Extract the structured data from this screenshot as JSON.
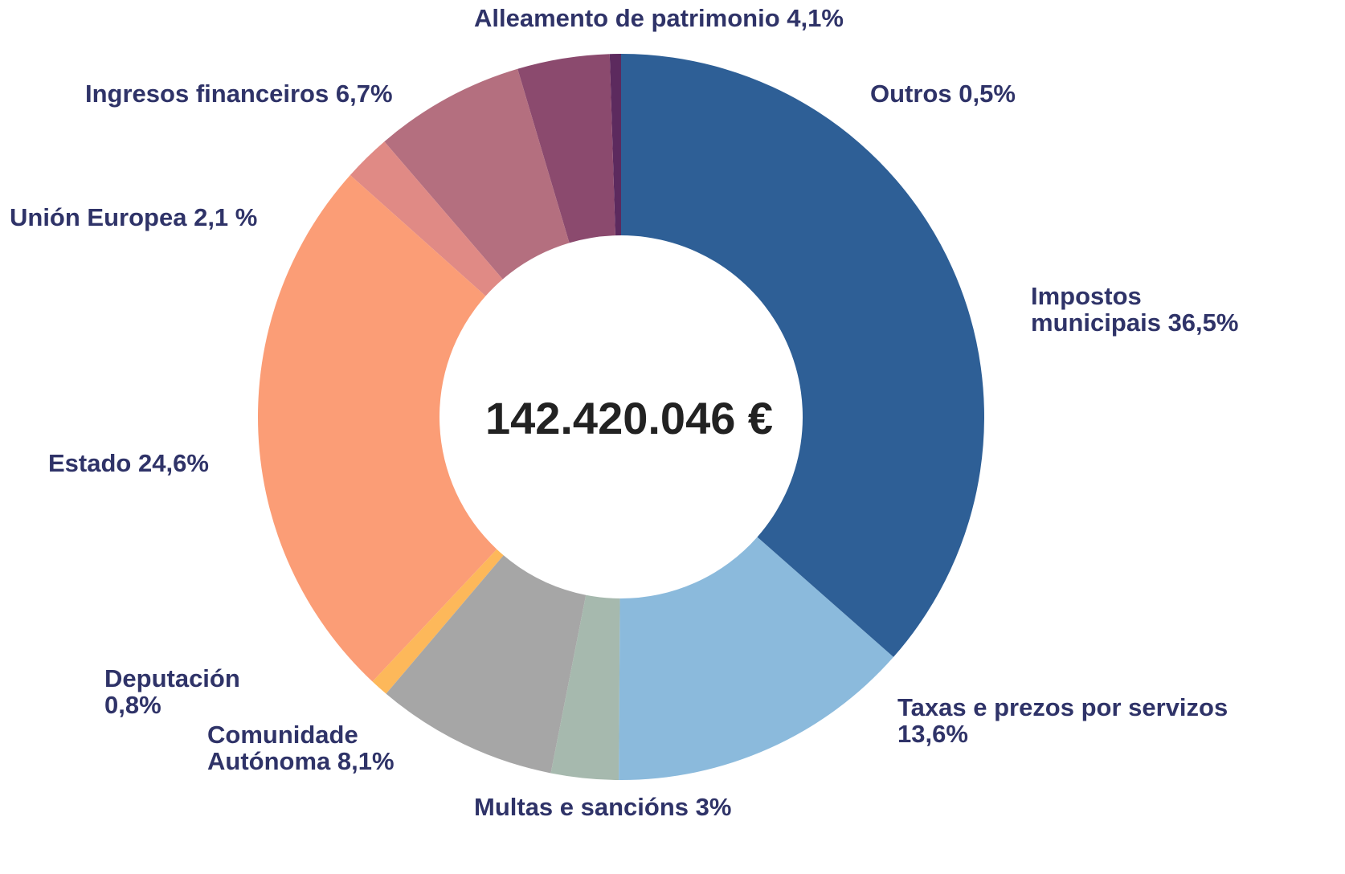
{
  "chart_data": {
    "type": "donut",
    "center_label": "142.420.046 €",
    "categories": [
      "Impostos municipais",
      "Taxas e prezos por servizos",
      "Multas e sancións",
      "Comunidade Autónoma",
      "Deputación",
      "Estado",
      "Unión Europea",
      "Ingresos financeiros",
      "Alleamento de patrimonio",
      "Outros"
    ],
    "values": [
      36.5,
      13.6,
      3,
      8.1,
      0.8,
      24.6,
      2.1,
      6.7,
      4.1,
      0.5
    ],
    "value_labels": [
      "36,5%",
      "13,6%",
      "3%",
      "8,1%",
      "0,8%",
      "24,6%",
      "2,1 %",
      "6,7%",
      "4,1%",
      "0,5%"
    ],
    "colors": [
      "#2e5f96",
      "#8bbadc",
      "#a6b9ae",
      "#a6a6a6",
      "#fdb85a",
      "#fb9d76",
      "#e08a85",
      "#b46f7f",
      "#8b4a6e",
      "#5c2a5e"
    ]
  }
}
